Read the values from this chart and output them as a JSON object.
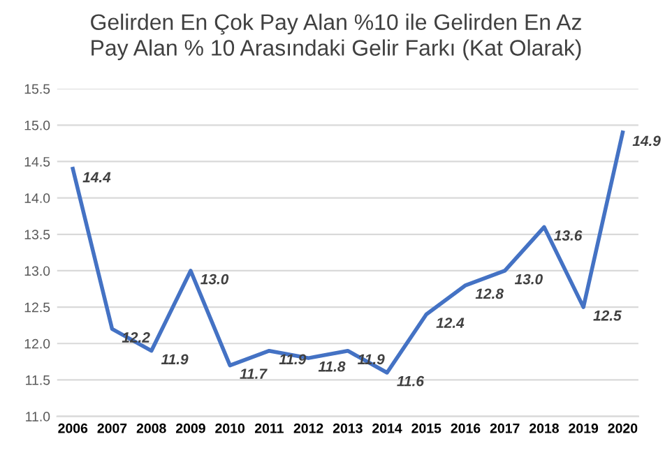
{
  "chart_data": {
    "type": "line",
    "title": "Gelirden En Çok Pay Alan %10 ile Gelirden En Az\nPay Alan % 10 Arasındaki Gelir Farkı (Kat Olarak)",
    "categories": [
      "2006",
      "2007",
      "2008",
      "2009",
      "2010",
      "2011",
      "2012",
      "2013",
      "2014",
      "2015",
      "2016",
      "2017",
      "2018",
      "2019",
      "2020"
    ],
    "series": [
      {
        "color": "#4472c4",
        "values": [
          14.4,
          12.2,
          11.9,
          13.0,
          11.7,
          11.9,
          11.8,
          11.9,
          11.6,
          12.4,
          12.8,
          13.0,
          13.6,
          12.5,
          14.9
        ]
      }
    ],
    "ylim": [
      11.0,
      15.5
    ],
    "yticks": [
      {
        "value": 11.0,
        "label": "11.0"
      },
      {
        "value": 11.5,
        "label": "11.5"
      },
      {
        "value": 12.0,
        "label": "12.0"
      },
      {
        "value": 12.5,
        "label": "12.5"
      },
      {
        "value": 13.0,
        "label": "13.0"
      },
      {
        "value": 13.5,
        "label": "13.5"
      },
      {
        "value": 14.0,
        "label": "14.0"
      },
      {
        "value": 14.5,
        "label": "14.5"
      },
      {
        "value": 15.0,
        "label": "15.0"
      },
      {
        "value": 15.5,
        "label": "15.5"
      }
    ],
    "value_labels": [
      "14.4",
      "12.2",
      "11.9",
      "13.0",
      "11.7",
      "11.9",
      "11.8",
      "11.9",
      "11.6",
      "12.4",
      "12.8",
      "13.0",
      "13.6",
      "12.5",
      "14.9"
    ],
    "grid": "y"
  }
}
